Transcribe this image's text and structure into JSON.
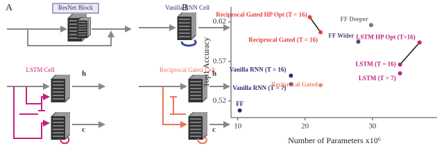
{
  "panel_a": {
    "label": "A",
    "resnet": {
      "title": "ResNet Block"
    },
    "vanilla": {
      "title": "Vanilla RNN Cell"
    },
    "lstm": {
      "title": "LSTM Cell",
      "h": "h",
      "c": "c"
    },
    "reciprocal": {
      "title": "Reciprocal Gated Cell",
      "h": "h",
      "c": "c"
    }
  },
  "chart_data": {
    "type": "scatter",
    "panel_label": "B",
    "x_label": "Number of Parameters x10⁶",
    "y_label": "Top1 Accuracy",
    "xlim": [
      9,
      39.6
    ],
    "ylim": [
      0.499,
      0.639
    ],
    "xticks": [
      10,
      20,
      30
    ],
    "yticks": [
      0.52,
      0.57,
      0.62
    ],
    "points": [
      {
        "label": "FF",
        "x": 10.3,
        "y": 0.508,
        "color": "#2b2d6e"
      },
      {
        "label": "Vanilla RNN (T = 16)",
        "x": 17.9,
        "y": 0.552,
        "color": "#2b2d6e"
      },
      {
        "label": "Vanilla RNN (T = 7)",
        "x": 17.9,
        "y": 0.541,
        "color": "#2b2d6e"
      },
      {
        "label": "Reciprocal Gated",
        "x": 22.3,
        "y": 0.54,
        "color": "#f0896a"
      },
      {
        "label": "Reciprocal Gated HP Opt (T = 16)",
        "x": 20.7,
        "y": 0.626,
        "color": "#e8403a"
      },
      {
        "label": "Reciprocal Gated (T = 16)",
        "x": 22.3,
        "y": 0.607,
        "color": "#e8403a"
      },
      {
        "label": "FF Deeper",
        "x": 29.8,
        "y": 0.616,
        "color": "#777777"
      },
      {
        "label": "FF Wider",
        "x": 27.9,
        "y": 0.595,
        "color": "#4a4c7a"
      },
      {
        "label": "LSTM HP Opt (T=16)",
        "x": 37.0,
        "y": 0.594,
        "color": "#c4207e"
      },
      {
        "label": "LSTM (T = 16)",
        "x": 34.1,
        "y": 0.566,
        "color": "#c4207e"
      },
      {
        "label": "LSTM (T = 7)",
        "x": 34.1,
        "y": 0.555,
        "color": "#c4207e"
      }
    ],
    "links": [
      [
        4,
        5
      ],
      [
        8,
        9
      ]
    ]
  }
}
